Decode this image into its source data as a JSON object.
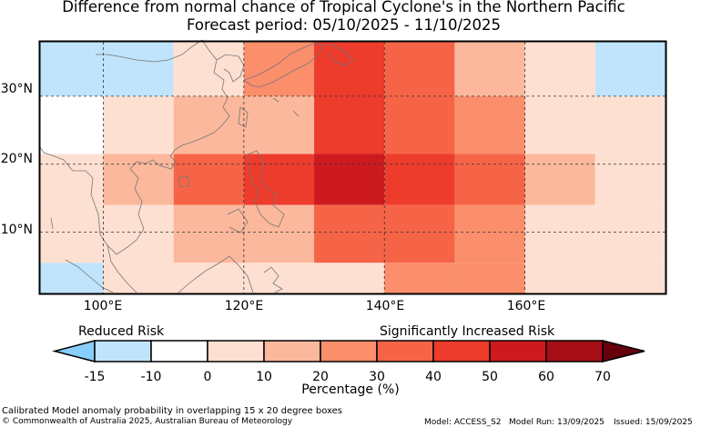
{
  "title": {
    "line1": "Difference from normal chance of Tropical Cyclone's in the Northern Pacific",
    "line2": "Forecast period: 05/10/2025 - 11/10/2025"
  },
  "map": {
    "lat_labels": [
      "30°N",
      "20°N",
      "10°N"
    ],
    "lon_labels": [
      "100°E",
      "120°E",
      "140°E",
      "160°E"
    ],
    "grid_lats": [
      30,
      20,
      10
    ],
    "grid_lons": [
      100,
      120,
      140,
      160
    ],
    "grid_style": "dashed",
    "lon_range": [
      91,
      180
    ],
    "lat_range": [
      1,
      38
    ],
    "cell_size_deg": "overlapping 15 x 20 degree boxes",
    "grid": {
      "lons": [
        [
          91,
          110
        ],
        [
          110,
          130
        ],
        [
          130,
          150
        ],
        [
          150,
          170
        ],
        [
          170,
          180
        ]
      ],
      "lats": [
        [
          1,
          5.5
        ],
        [
          5.5,
          14
        ],
        [
          14,
          21.5
        ],
        [
          21.5,
          30
        ],
        [
          30,
          35
        ]
      ],
      "pct": [
        [
          -12,
          0,
          3,
          25,
          0
        ],
        [
          0,
          8,
          23,
          25,
          5
        ],
        [
          6,
          14,
          40,
          32,
          15
        ],
        [
          -10,
          12,
          36,
          25,
          5
        ],
        [
          -12,
          0,
          28,
          10,
          -12
        ]
      ],
      "overlay_cells": [
        {
          "lon": [
            91,
            110
          ],
          "lat": [
            30,
            38
          ],
          "pct": -12
        },
        {
          "lon": [
            170,
            180
          ],
          "lat": [
            30,
            38
          ],
          "pct": -12
        },
        {
          "lon": [
            110,
            120
          ],
          "lat": [
            30,
            38
          ],
          "pct": 0
        },
        {
          "lon": [
            120,
            130
          ],
          "lat": [
            30,
            38
          ],
          "pct": 20
        },
        {
          "lon": [
            130,
            140
          ],
          "lat": [
            21.5,
            38
          ],
          "pct": 42
        },
        {
          "lon": [
            140,
            150
          ],
          "lat": [
            21.5,
            38
          ],
          "pct": 36
        },
        {
          "lon": [
            150,
            160
          ],
          "lat": [
            30,
            38
          ],
          "pct": 14
        },
        {
          "lon": [
            160,
            170
          ],
          "lat": [
            30,
            38
          ],
          "pct": 0
        },
        {
          "lon": [
            130,
            140
          ],
          "lat": [
            14,
            21.5
          ],
          "pct": 52
        },
        {
          "lon": [
            140,
            150
          ],
          "lat": [
            14,
            21.5
          ],
          "pct": 42
        },
        {
          "lon": [
            120,
            130
          ],
          "lat": [
            14,
            21.5
          ],
          "pct": 43
        },
        {
          "lon": [
            110,
            120
          ],
          "lat": [
            14,
            21.5
          ],
          "pct": 36
        },
        {
          "lon": [
            100,
            110
          ],
          "lat": [
            14,
            21.5
          ],
          "pct": 13
        },
        {
          "lon": [
            91,
            100
          ],
          "lat": [
            14,
            21.5
          ],
          "pct": 6
        },
        {
          "lon": [
            150,
            160
          ],
          "lat": [
            14,
            21.5
          ],
          "pct": 33
        },
        {
          "lon": [
            160,
            170
          ],
          "lat": [
            14,
            21.5
          ],
          "pct": 15
        },
        {
          "lon": [
            170,
            180
          ],
          "lat": [
            14,
            21.5
          ],
          "pct": 5
        },
        {
          "lon": [
            91,
            100
          ],
          "lat": [
            21.5,
            30
          ],
          "pct": -8
        },
        {
          "lon": [
            100,
            110
          ],
          "lat": [
            21.5,
            30
          ],
          "pct": 0
        },
        {
          "lon": [
            110,
            130
          ],
          "lat": [
            21.5,
            30
          ],
          "pct": 14
        },
        {
          "lon": [
            150,
            160
          ],
          "lat": [
            21.5,
            30
          ],
          "pct": 24
        },
        {
          "lon": [
            160,
            170
          ],
          "lat": [
            21.5,
            30
          ],
          "pct": 6
        },
        {
          "lon": [
            170,
            180
          ],
          "lat": [
            21.5,
            30
          ],
          "pct": 0
        },
        {
          "lon": [
            91,
            100
          ],
          "lat": [
            5.5,
            14
          ],
          "pct": 0
        },
        {
          "lon": [
            100,
            110
          ],
          "lat": [
            5.5,
            14
          ],
          "pct": 5
        },
        {
          "lon": [
            110,
            130
          ],
          "lat": [
            5.5,
            14
          ],
          "pct": 13
        },
        {
          "lon": [
            130,
            150
          ],
          "lat": [
            5.5,
            14
          ],
          "pct": 35
        },
        {
          "lon": [
            150,
            160
          ],
          "lat": [
            5.5,
            14
          ],
          "pct": 24
        },
        {
          "lon": [
            160,
            170
          ],
          "lat": [
            5.5,
            14
          ],
          "pct": 6
        },
        {
          "lon": [
            170,
            180
          ],
          "lat": [
            5.5,
            14
          ],
          "pct": 0
        },
        {
          "lon": [
            91,
            100
          ],
          "lat": [
            1,
            5.5
          ],
          "pct": -12
        },
        {
          "lon": [
            100,
            130
          ],
          "lat": [
            1,
            5.5
          ],
          "pct": 0
        },
        {
          "lon": [
            130,
            140
          ],
          "lat": [
            1,
            5.5
          ],
          "pct": 5
        },
        {
          "lon": [
            140,
            150
          ],
          "lat": [
            1,
            5.5
          ],
          "pct": 23
        },
        {
          "lon": [
            150,
            160
          ],
          "lat": [
            1,
            5.5
          ],
          "pct": 24
        },
        {
          "lon": [
            160,
            170
          ],
          "lat": [
            1,
            5.5
          ],
          "pct": 6
        },
        {
          "lon": [
            170,
            180
          ],
          "lat": [
            1,
            5.5
          ],
          "pct": 0
        }
      ]
    }
  },
  "colorbar": {
    "label_left": "Reduced Risk",
    "label_right": "Significantly Increased Risk",
    "xlabel": "Percentage (%)",
    "ticks": [
      "-15",
      "-10",
      "0",
      "10",
      "20",
      "30",
      "40",
      "50",
      "60",
      "70"
    ],
    "bins": [
      {
        "from": -15,
        "to": -10,
        "color": "#bfe4fb"
      },
      {
        "from": -10,
        "to": 0,
        "color": "#ffffff"
      },
      {
        "from": 0,
        "to": 10,
        "color": "#fee0d3"
      },
      {
        "from": 10,
        "to": 20,
        "color": "#fcb89c"
      },
      {
        "from": 20,
        "to": 30,
        "color": "#fb8e6b"
      },
      {
        "from": 30,
        "to": 40,
        "color": "#f66447"
      },
      {
        "from": 40,
        "to": 50,
        "color": "#ed3b2c"
      },
      {
        "from": 50,
        "to": 60,
        "color": "#cc1a1e"
      },
      {
        "from": 60,
        "to": 70,
        "color": "#a50f15"
      }
    ],
    "under_color": "#87cefa",
    "over_color": "#67000d"
  },
  "footer": {
    "desc": "Calibrated Model anomaly probability in overlapping 15 x 20 degree boxes",
    "copyright": "© Commonwealth of Australia 2025, Australian Bureau of Meteorology",
    "model": "Model: ACCESS_S2",
    "run": "Model Run: 13/09/2025",
    "issued": "Issued: 15/09/2025"
  }
}
